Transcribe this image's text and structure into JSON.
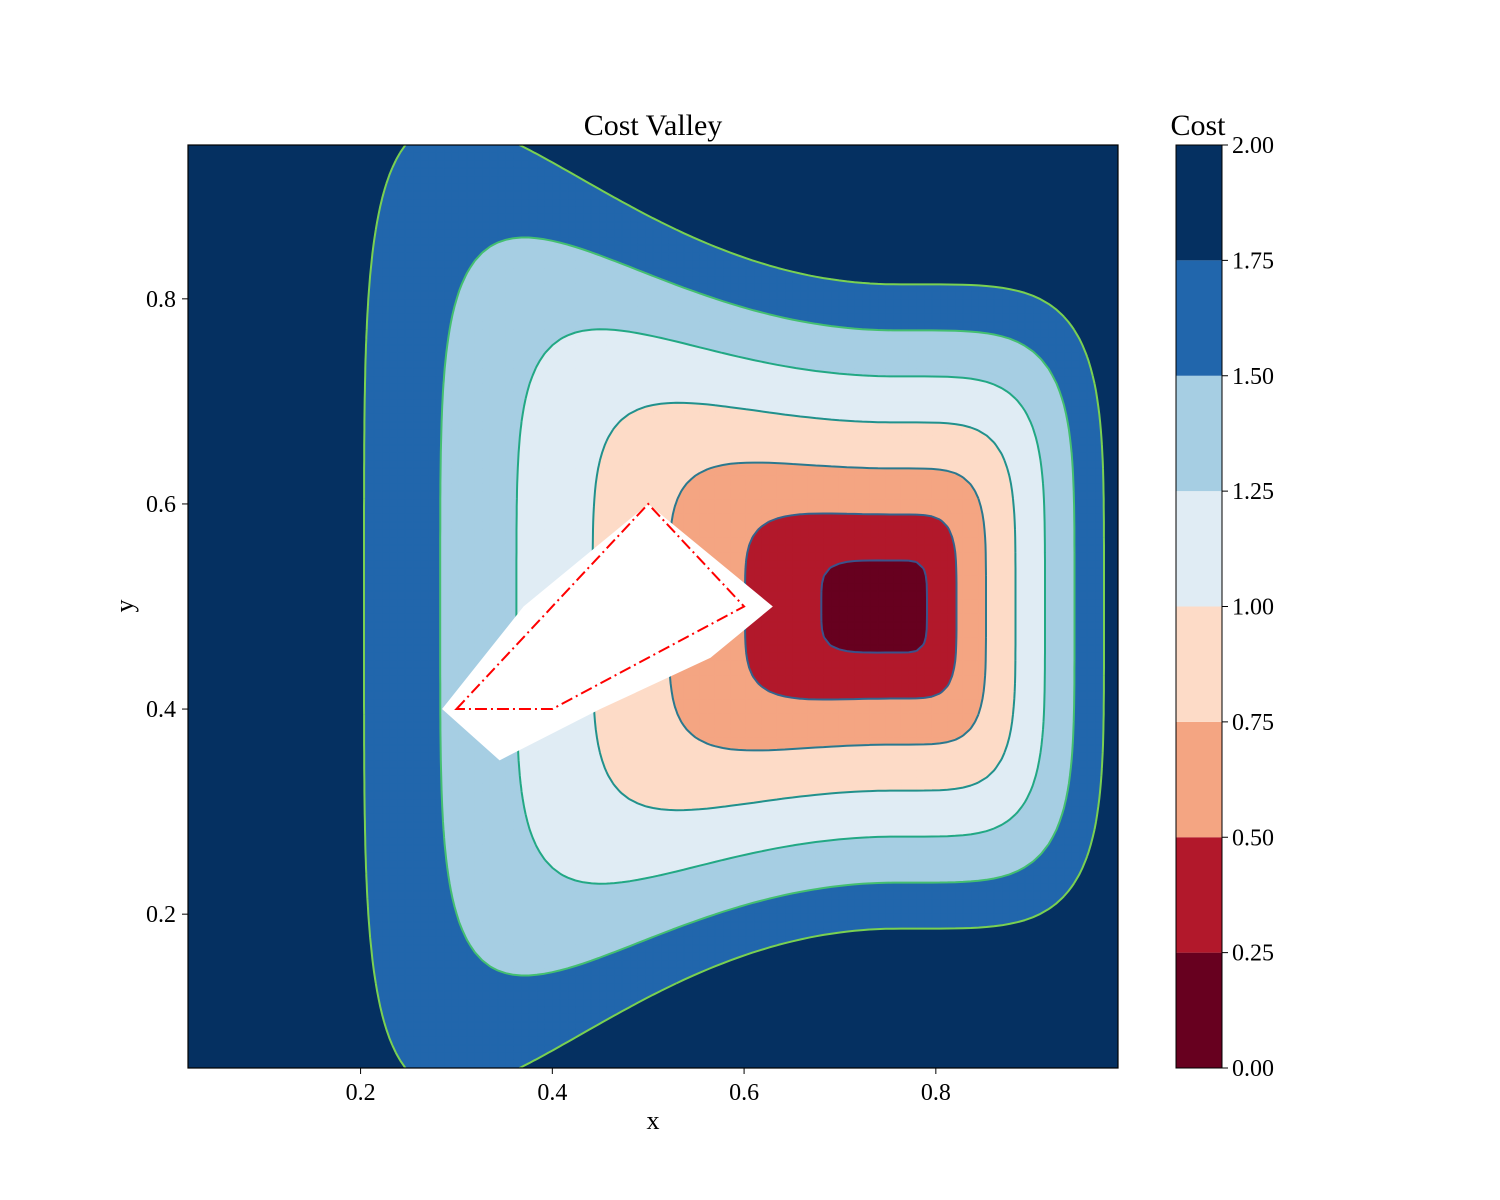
{
  "chart_data": {
    "type": "contour",
    "title": "Cost Valley",
    "xlabel": "x",
    "ylabel": "y",
    "xlim": [
      0.02,
      0.99
    ],
    "ylim": [
      0.05,
      0.95
    ],
    "x_ticks": [
      "0.2",
      "0.4",
      "0.6",
      "0.8"
    ],
    "y_ticks": [
      "0.2",
      "0.4",
      "0.6",
      "0.8"
    ],
    "colorbar": {
      "label": "Cost",
      "range": [
        0.0,
        2.0
      ],
      "ticks": [
        "0.00",
        "0.25",
        "0.50",
        "0.75",
        "1.00",
        "1.25",
        "1.50",
        "1.75",
        "2.00"
      ],
      "levels": [
        0.0,
        0.25,
        0.5,
        0.75,
        1.0,
        1.25,
        1.5,
        1.75,
        2.0
      ],
      "colors": [
        "#67001f",
        "#b2182b",
        "#f4a582",
        "#fddbc7",
        "#e0ecf4",
        "#a6cee3",
        "#2166ac",
        "#053061"
      ]
    },
    "cost_minimum": {
      "x": 0.76,
      "y": 0.5,
      "value": 0.0
    },
    "excluded_region": {
      "fill": "#ffffff",
      "vertices": [
        [
          0.285,
          0.4
        ],
        [
          0.37,
          0.5
        ],
        [
          0.5,
          0.6
        ],
        [
          0.63,
          0.5
        ],
        [
          0.565,
          0.45
        ],
        [
          0.45,
          0.4
        ],
        [
          0.345,
          0.35
        ]
      ]
    },
    "boundary_polygon": {
      "style": "dash-dot",
      "color": "#ff0000",
      "vertices": [
        [
          0.3,
          0.4
        ],
        [
          0.5,
          0.6
        ],
        [
          0.6,
          0.5
        ],
        [
          0.4,
          0.4
        ]
      ]
    }
  }
}
